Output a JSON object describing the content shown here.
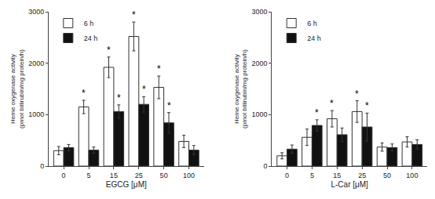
{
  "chart_data": [
    {
      "type": "bar",
      "categories": [
        "0",
        "5",
        "15",
        "25",
        "50",
        "100"
      ],
      "series": [
        {
          "name": "6 h",
          "color": "#ffffff",
          "values": [
            300,
            1150,
            1920,
            2520,
            1530,
            480
          ],
          "errors": [
            80,
            130,
            200,
            280,
            220,
            120
          ]
        },
        {
          "name": "24 h",
          "color": "#111111",
          "values": [
            360,
            310,
            1060,
            1200,
            840,
            310
          ],
          "errors": [
            60,
            60,
            130,
            150,
            200,
            90
          ]
        }
      ],
      "x_label": "EGCG [μM]",
      "y_label": "Heme oxygenase activity\n(pmol billirubin/mg protein/h)",
      "ylim": [
        0,
        3000
      ],
      "yticks": [
        0,
        1000,
        2000,
        3000
      ],
      "grid": false,
      "legend": "upper left",
      "annotations": [
        {
          "text": "*",
          "category": "5",
          "series": "6 h"
        },
        {
          "text": "*",
          "category": "15",
          "series": "6 h"
        },
        {
          "text": "*",
          "category": "25",
          "series": "6 h"
        },
        {
          "text": "*",
          "category": "50",
          "series": "6 h"
        },
        {
          "text": "*",
          "category": "15",
          "series": "24 h"
        },
        {
          "text": "*",
          "category": "25",
          "series": "24 h"
        },
        {
          "text": "*",
          "category": "50",
          "series": "24 h"
        }
      ]
    },
    {
      "type": "bar",
      "categories": [
        "0",
        "5",
        "15",
        "25",
        "50",
        "100"
      ],
      "series": [
        {
          "name": "6 h",
          "color": "#ffffff",
          "values": [
            200,
            560,
            920,
            1060,
            370,
            470
          ],
          "errors": [
            60,
            160,
            160,
            210,
            80,
            100
          ]
        },
        {
          "name": "24 h",
          "color": "#111111",
          "values": [
            330,
            790,
            610,
            760,
            360,
            420
          ],
          "errors": [
            80,
            110,
            130,
            270,
            70,
            90
          ]
        }
      ],
      "x_label": "L-Car [μM]",
      "y_label": "Heme oxygenase activity\n(pmol billirubin/mg protein/h)",
      "ylim": [
        0,
        3000
      ],
      "yticks": [
        0,
        1000,
        2000,
        3000
      ],
      "grid": false,
      "legend": "upper left",
      "annotations": [
        {
          "text": "*",
          "category": "15",
          "series": "6 h"
        },
        {
          "text": "*",
          "category": "25",
          "series": "6 h"
        },
        {
          "text": "*",
          "category": "5",
          "series": "24 h"
        },
        {
          "text": "*",
          "category": "25",
          "series": "24 h"
        }
      ]
    }
  ]
}
